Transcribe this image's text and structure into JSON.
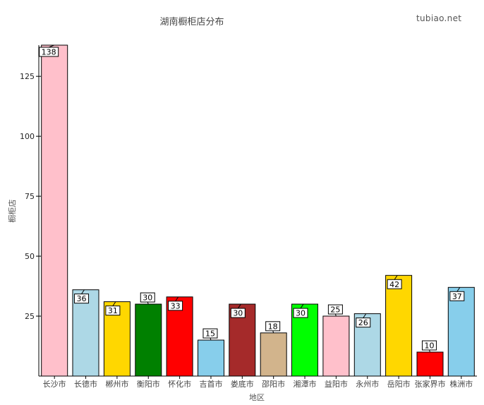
{
  "header": {
    "title": "湖南橱柜店分布",
    "watermark": "tubiao.net"
  },
  "chart_data": {
    "type": "bar",
    "title": "湖南橱柜店分布",
    "xlabel": "地区",
    "ylabel": "橱柜店",
    "categories": [
      "长沙市",
      "长德市",
      "郴州市",
      "衡阳市",
      "怀化市",
      "吉首市",
      "娄底市",
      "邵阳市",
      "湘潭市",
      "益阳市",
      "永州市",
      "岳阳市",
      "张家界市",
      "株洲市"
    ],
    "values": [
      138,
      36,
      31,
      30,
      33,
      15,
      30,
      18,
      30,
      25,
      26,
      42,
      10,
      37
    ],
    "colors": [
      "#ffc0cb",
      "#add8e6",
      "#ffd700",
      "#008000",
      "#ff0000",
      "#87ceeb",
      "#a52a2a",
      "#d2b48c",
      "#00ff00",
      "#ffc0cb",
      "#add8e6",
      "#ffd700",
      "#ff0000",
      "#87ceeb"
    ],
    "ylim": [
      0,
      138
    ],
    "yticks": [
      25,
      50,
      75,
      100,
      125
    ],
    "grid": false,
    "legend": "none"
  }
}
